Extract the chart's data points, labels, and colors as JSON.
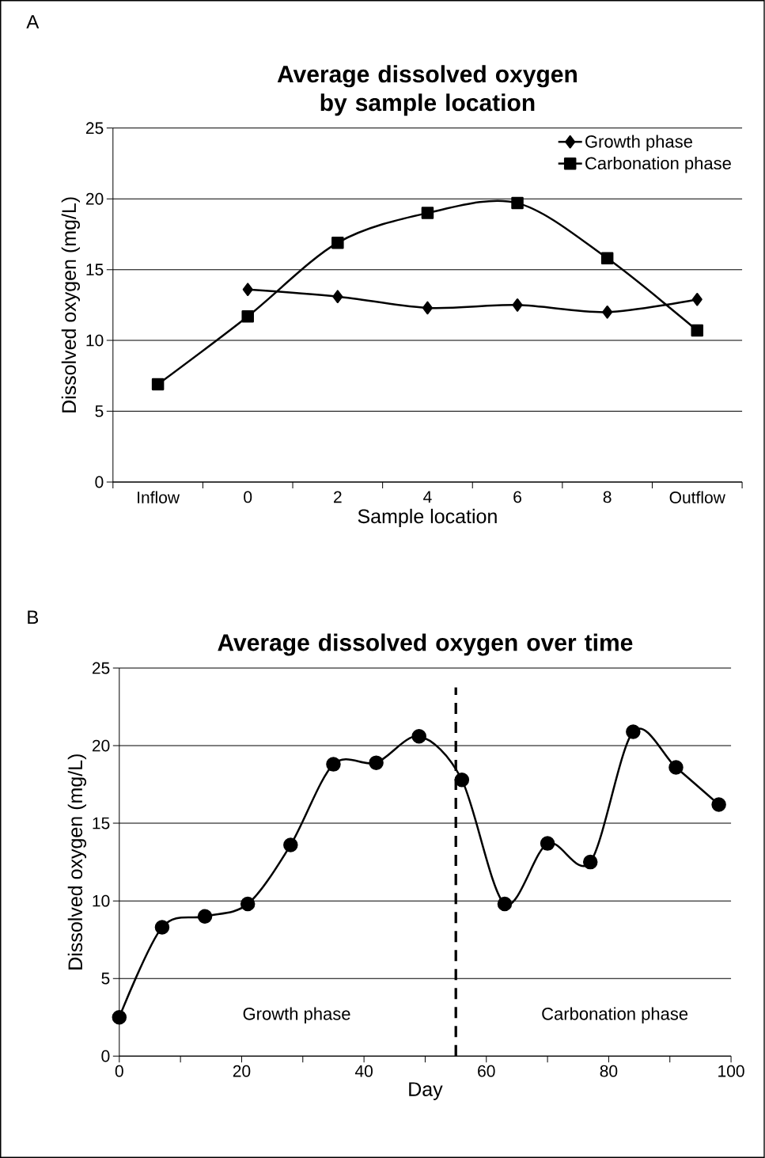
{
  "chart_data": [
    {
      "type": "line",
      "title": "Average dissolved oxygen by sample location",
      "xlabel": "Sample location",
      "ylabel": "Dissolved oxygen (mg/L)",
      "categories": [
        "Inflow",
        "0",
        "2",
        "4",
        "6",
        "8",
        "Outflow"
      ],
      "series": [
        {
          "name": "Growth phase",
          "color": "#000000",
          "marker": "diamond",
          "values": [
            null,
            13.6,
            13.1,
            12.3,
            12.5,
            12.0,
            12.9
          ]
        },
        {
          "name": "Carbonation phase",
          "color": "#000000",
          "marker": "square",
          "values": [
            6.9,
            11.7,
            16.9,
            19.0,
            19.7,
            15.8,
            10.7
          ]
        }
      ],
      "ylim": [
        0,
        25
      ],
      "yticks": [
        0,
        5,
        10,
        15,
        20,
        25
      ],
      "grid": "y",
      "legend": "top right",
      "line_style": "solid",
      "annotations": [
        "A"
      ]
    },
    {
      "type": "line",
      "title": "Average dissolved oxygen over time",
      "xlabel": "Day",
      "ylabel": "Dissolved oxygen (mg/L)",
      "x": [
        0,
        7,
        14,
        21,
        28,
        35,
        42,
        49,
        56,
        63,
        70,
        77,
        84,
        91,
        98
      ],
      "series": [
        {
          "color": "#000000",
          "values": [
            2.5,
            8.3,
            9.0,
            9.8,
            13.6,
            18.8,
            18.9,
            20.6,
            17.8,
            9.8,
            13.7,
            12.5,
            20.9,
            18.6,
            16.2
          ]
        }
      ],
      "marker": "circle",
      "line_style": "solid",
      "xlim": [
        0,
        100
      ],
      "xticks": [
        0,
        20,
        40,
        60,
        80,
        100
      ],
      "ylim": [
        0,
        25
      ],
      "yticks": [
        0,
        5,
        10,
        15,
        20,
        25
      ],
      "grid": "y",
      "ref_lines": [
        {
          "axis": "x",
          "value": 55,
          "line_style": "dashed",
          "color": "#000000"
        }
      ],
      "annotations": [
        "B",
        "Growth phase",
        "Carbonation phase"
      ]
    }
  ]
}
